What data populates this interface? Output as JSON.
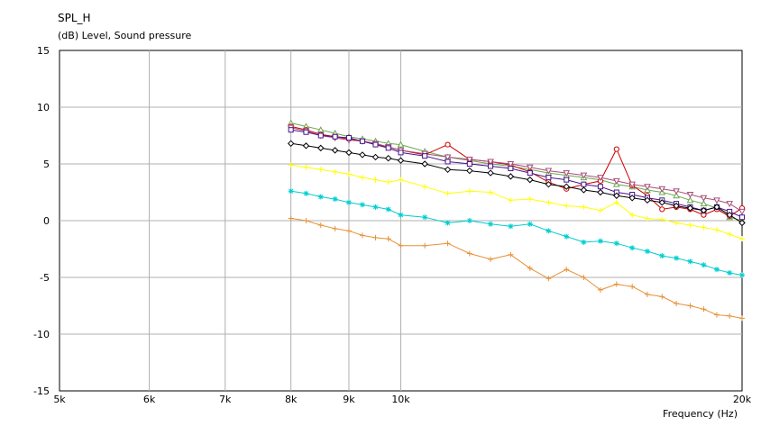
{
  "chart_data": {
    "type": "line",
    "title": "SPL_H",
    "ylabel": "(dB)  Level, Sound pressure",
    "xlabel": "Frequency  (Hz)",
    "x_scale": "log",
    "xlim": [
      5000,
      20000
    ],
    "ylim": [
      -15,
      15
    ],
    "grid": true,
    "x_ticks": [
      {
        "value": 5000,
        "label": "5k"
      },
      {
        "value": 6000,
        "label": "6k"
      },
      {
        "value": 7000,
        "label": "7k"
      },
      {
        "value": 8000,
        "label": "8k"
      },
      {
        "value": 9000,
        "label": "9k"
      },
      {
        "value": 10000,
        "label": "10k"
      },
      {
        "value": 20000,
        "label": "20k"
      }
    ],
    "y_ticks": [
      {
        "value": 15,
        "label": "15"
      },
      {
        "value": 10,
        "label": "10"
      },
      {
        "value": 5,
        "label": "5"
      },
      {
        "value": 0,
        "label": "0"
      },
      {
        "value": -5,
        "label": "-5"
      },
      {
        "value": -10,
        "label": "-10"
      },
      {
        "value": -15,
        "label": "-15"
      }
    ],
    "x": [
      8000,
      8250,
      8500,
      8750,
      9000,
      9250,
      9500,
      9750,
      10000,
      10500,
      11000,
      11500,
      12000,
      12500,
      13000,
      13500,
      14000,
      14500,
      15000,
      15500,
      16000,
      16500,
      17000,
      17500,
      18000,
      18500,
      19000,
      19500,
      20000
    ],
    "series": [
      {
        "color": "#6aa84f",
        "marker": "triangle",
        "values": [
          8.6,
          8.3,
          8.0,
          7.7,
          7.4,
          7.2,
          7.0,
          6.8,
          6.7,
          6.1,
          5.6,
          5.3,
          5.0,
          4.8,
          4.5,
          4.2,
          4.0,
          3.8,
          3.6,
          3.2,
          3.0,
          2.7,
          2.5,
          2.2,
          1.8,
          1.5,
          1.1,
          0.3,
          0.0
        ]
      },
      {
        "color": "#cc0000",
        "marker": "circle",
        "values": [
          8.3,
          8.0,
          7.6,
          7.4,
          7.2,
          7.0,
          6.7,
          6.5,
          6.2,
          5.8,
          6.7,
          5.4,
          5.2,
          4.9,
          4.3,
          3.4,
          2.8,
          3.2,
          3.5,
          6.3,
          3.1,
          2.2,
          1.0,
          1.2,
          1.0,
          0.5,
          1.0,
          0.4,
          1.1
        ]
      },
      {
        "color": "#a64d79",
        "marker": "triangle-down",
        "values": [
          8.2,
          7.9,
          7.5,
          7.3,
          7.1,
          7.0,
          6.8,
          6.5,
          6.2,
          5.9,
          5.6,
          5.4,
          5.2,
          5.0,
          4.7,
          4.4,
          4.2,
          4.0,
          3.8,
          3.5,
          3.2,
          3.0,
          2.8,
          2.6,
          2.3,
          2.0,
          1.8,
          1.5,
          0.8
        ]
      },
      {
        "color": "#4a148c",
        "marker": "square",
        "values": [
          8.0,
          7.8,
          7.5,
          7.4,
          7.3,
          7.0,
          6.7,
          6.4,
          6.0,
          5.7,
          5.2,
          5.0,
          4.8,
          4.6,
          4.2,
          3.8,
          3.6,
          3.2,
          3.0,
          2.5,
          2.3,
          2.0,
          1.8,
          1.5,
          1.2,
          0.9,
          1.2,
          0.8,
          0.3
        ]
      },
      {
        "color": "#000000",
        "marker": "diamond",
        "values": [
          6.8,
          6.6,
          6.4,
          6.2,
          6.0,
          5.8,
          5.6,
          5.5,
          5.3,
          5.0,
          4.5,
          4.4,
          4.2,
          3.9,
          3.6,
          3.2,
          3.0,
          2.7,
          2.5,
          2.2,
          2.0,
          1.8,
          1.6,
          1.3,
          1.1,
          0.9,
          1.2,
          0.5,
          -0.2
        ]
      },
      {
        "color": "#ffff00",
        "marker": "plus",
        "values": [
          4.9,
          4.7,
          4.5,
          4.3,
          4.1,
          3.8,
          3.6,
          3.4,
          3.6,
          3.0,
          2.4,
          2.6,
          2.5,
          1.8,
          1.9,
          1.6,
          1.3,
          1.2,
          0.9,
          1.6,
          0.5,
          0.2,
          0.1,
          -0.2,
          -0.4,
          -0.6,
          -0.8,
          -1.2,
          -1.6
        ]
      },
      {
        "color": "#00ced1",
        "marker": "star",
        "values": [
          2.6,
          2.4,
          2.1,
          1.9,
          1.6,
          1.4,
          1.2,
          1.0,
          0.5,
          0.3,
          -0.2,
          0.0,
          -0.3,
          -0.5,
          -0.3,
          -0.9,
          -1.4,
          -1.9,
          -1.8,
          -2.0,
          -2.4,
          -2.7,
          -3.1,
          -3.3,
          -3.6,
          -3.9,
          -4.3,
          -4.6,
          -4.8
        ]
      },
      {
        "color": "#e69138",
        "marker": "plus",
        "values": [
          0.2,
          0.0,
          -0.4,
          -0.7,
          -0.9,
          -1.3,
          -1.5,
          -1.6,
          -2.2,
          -2.2,
          -2.0,
          -2.9,
          -3.4,
          -3.0,
          -4.2,
          -5.1,
          -4.3,
          -5.0,
          -6.1,
          -5.6,
          -5.8,
          -6.5,
          -6.7,
          -7.3,
          -7.5,
          -7.8,
          -8.3,
          -8.4,
          -8.6
        ]
      }
    ]
  }
}
